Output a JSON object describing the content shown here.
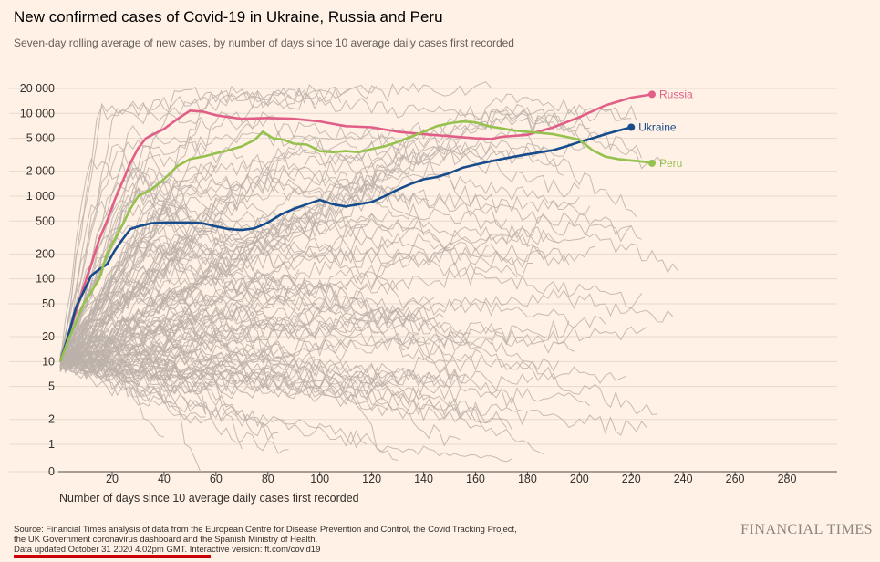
{
  "title": "New confirmed cases of Covid-19 in Ukraine, Russia and Peru",
  "subtitle": "Seven-day rolling average of new cases, by number of days since 10 average daily cases first recorded",
  "source": {
    "line1": "Source: Financial Times analysis of data from the European Centre for Disease Prevention and Control, the Covid Tracking Project,",
    "line2": "the UK Government coronavirus dashboard and the Spanish Ministry of Health.",
    "line3": "Data updated October 31 2020 4.02pm GMT. Interactive version: ft.com/covid19"
  },
  "brand": "FINANCIAL TIMES",
  "colors": {
    "background": "#fff1e5",
    "Russia": "#e15e87",
    "Ukraine": "#164c8c",
    "Peru": "#95c24f",
    "others": "#bcb2aa",
    "accent_bar": "#cc0000"
  },
  "chart_data": {
    "type": "line",
    "title": "New confirmed cases of Covid-19 in Ukraine, Russia and Peru",
    "xlabel": "Number of days since 10 average daily cases first recorded",
    "ylabel": "",
    "yscale": "log (symlog, includes 0)",
    "xlim": [
      0,
      300
    ],
    "ylim": [
      0,
      20000
    ],
    "x_ticks": [
      20,
      40,
      60,
      80,
      100,
      120,
      140,
      160,
      180,
      200,
      220,
      240,
      260,
      280
    ],
    "y_ticks": [
      0,
      1,
      2,
      5,
      10,
      20,
      50,
      100,
      200,
      500,
      1000,
      2000,
      5000,
      10000,
      20000
    ],
    "y_tick_labels": [
      "0",
      "1",
      "2",
      "5",
      "10",
      "20",
      "50",
      "100",
      "200",
      "500",
      "1 000",
      "2 000",
      "5 000",
      "10 000",
      "20 000"
    ],
    "grid": "horizontal",
    "legend": "direct labels at line ends",
    "series": [
      {
        "name": "Russia",
        "x": [
          0,
          3,
          6,
          9,
          12,
          15,
          18,
          21,
          24,
          27,
          30,
          33,
          36,
          40,
          45,
          50,
          55,
          60,
          65,
          70,
          80,
          90,
          100,
          110,
          120,
          130,
          140,
          150,
          160,
          166,
          170,
          180,
          190,
          200,
          210,
          220,
          228
        ],
        "values": [
          10,
          20,
          40,
          80,
          150,
          300,
          500,
          900,
          1500,
          2500,
          3800,
          5000,
          5600,
          6500,
          8500,
          10800,
          10500,
          9500,
          9000,
          8600,
          8800,
          8600,
          8000,
          7000,
          6800,
          6000,
          5600,
          5300,
          5000,
          4900,
          5200,
          5500,
          6800,
          9000,
          12500,
          15500,
          17000
        ]
      },
      {
        "name": "Ukraine",
        "x": [
          0,
          3,
          6,
          9,
          12,
          15,
          18,
          21,
          24,
          27,
          30,
          35,
          40,
          45,
          50,
          55,
          60,
          65,
          70,
          75,
          80,
          85,
          90,
          95,
          100,
          105,
          110,
          115,
          120,
          125,
          130,
          135,
          140,
          145,
          150,
          155,
          160,
          165,
          170,
          175,
          180,
          185,
          190,
          195,
          200,
          205,
          210,
          215,
          220
        ],
        "values": [
          10,
          20,
          45,
          70,
          110,
          130,
          150,
          220,
          300,
          400,
          430,
          470,
          480,
          480,
          480,
          470,
          430,
          400,
          390,
          410,
          480,
          600,
          700,
          800,
          900,
          800,
          750,
          800,
          850,
          1000,
          1200,
          1400,
          1600,
          1700,
          1900,
          2200,
          2400,
          2600,
          2800,
          3000,
          3200,
          3400,
          3600,
          4000,
          4500,
          5000,
          5600,
          6200,
          6800
        ]
      },
      {
        "name": "Peru",
        "x": [
          0,
          3,
          6,
          9,
          12,
          15,
          18,
          21,
          24,
          27,
          30,
          35,
          40,
          45,
          50,
          55,
          60,
          65,
          70,
          75,
          78,
          82,
          86,
          90,
          95,
          100,
          105,
          110,
          115,
          120,
          125,
          130,
          135,
          140,
          145,
          150,
          155,
          160,
          165,
          170,
          175,
          180,
          185,
          190,
          195,
          200,
          205,
          210,
          215,
          220,
          225,
          228
        ],
        "values": [
          10,
          18,
          30,
          50,
          70,
          100,
          200,
          300,
          450,
          700,
          1000,
          1200,
          1600,
          2300,
          2800,
          3000,
          3300,
          3600,
          4000,
          4800,
          6000,
          5000,
          4800,
          4300,
          4200,
          3500,
          3400,
          3500,
          3400,
          3700,
          4000,
          4500,
          5200,
          6000,
          7000,
          7600,
          8000,
          7800,
          7000,
          6600,
          6200,
          6000,
          5800,
          5600,
          5200,
          4800,
          3600,
          3000,
          2800,
          2700,
          2600,
          2500
        ]
      }
    ],
    "background_series_description_count": 120
  }
}
